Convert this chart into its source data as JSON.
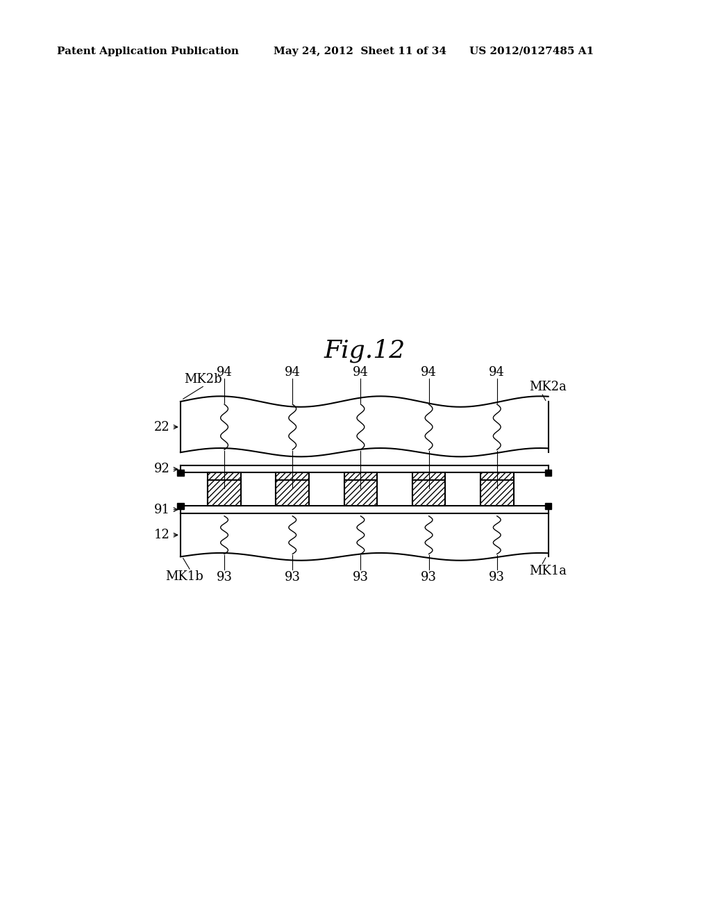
{
  "title": "Fig.12",
  "header_left": "Patent Application Publication",
  "header_center": "May 24, 2012  Sheet 11 of 34",
  "header_right": "US 2012/0127485 A1",
  "background_color": "#ffffff",
  "line_color": "#000000"
}
